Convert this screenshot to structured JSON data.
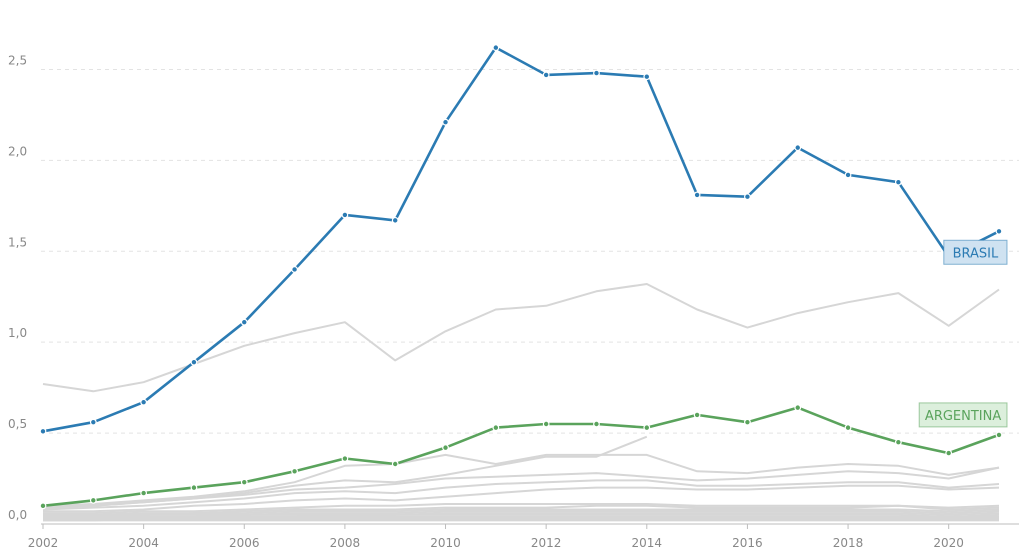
{
  "chart_data": {
    "type": "line",
    "x": [
      2002,
      2003,
      2004,
      2005,
      2006,
      2007,
      2008,
      2009,
      2010,
      2011,
      2012,
      2013,
      2014,
      2015,
      2016,
      2017,
      2018,
      2019,
      2020,
      2021
    ],
    "xticks": [
      "2002",
      "2004",
      "2006",
      "2008",
      "2010",
      "2012",
      "2014",
      "2016",
      "2018",
      "2020"
    ],
    "yticks": [
      "0,0",
      "0,5",
      "1,0",
      "1,5",
      "2,0",
      "2,5"
    ],
    "ylim": [
      0,
      2.75
    ],
    "xlim": [
      2002,
      2021
    ],
    "grid": true,
    "series": [
      {
        "name": "BRASIL",
        "highlight": true,
        "color": "#2b7bb3",
        "label_bg": "#cfe2f1",
        "values": [
          0.51,
          0.56,
          0.67,
          0.89,
          1.11,
          1.4,
          1.7,
          1.67,
          2.21,
          2.62,
          2.47,
          2.48,
          2.46,
          1.81,
          1.8,
          2.07,
          1.92,
          1.88,
          1.47,
          1.61
        ]
      },
      {
        "name": "ARGENTINA",
        "highlight": true,
        "color": "#5aa35c",
        "label_bg": "#dcefdc",
        "values": [
          0.1,
          0.13,
          0.17,
          0.2,
          0.23,
          0.29,
          0.36,
          0.33,
          0.42,
          0.53,
          0.55,
          0.55,
          0.53,
          0.6,
          0.56,
          0.64,
          0.53,
          0.45,
          0.39,
          0.49
        ]
      }
    ],
    "background_series_color": "#d6d6d6",
    "background_series": [
      [
        0.77,
        0.73,
        0.78,
        0.88,
        0.98,
        1.05,
        1.11,
        0.9,
        1.06,
        1.18,
        1.2,
        1.28,
        1.32,
        1.18,
        1.08,
        1.16,
        1.22,
        1.27,
        1.09,
        1.29
      ],
      [
        0.1,
        0.11,
        0.13,
        0.15,
        0.18,
        0.23,
        0.32,
        0.33,
        0.38,
        0.33,
        0.38,
        0.38,
        0.38,
        0.29,
        0.28,
        0.31,
        0.33,
        0.32,
        0.27,
        0.31
      ],
      [
        0.09,
        0.1,
        0.12,
        0.14,
        0.17,
        0.21,
        0.24,
        0.23,
        0.27,
        0.32,
        0.37,
        0.37,
        0.48,
        null,
        null,
        null,
        null,
        null,
        null,
        null
      ],
      [
        0.09,
        0.1,
        0.12,
        0.14,
        0.16,
        0.19,
        0.2,
        0.22,
        0.25,
        0.26,
        0.27,
        0.28,
        0.26,
        0.24,
        0.25,
        0.27,
        0.29,
        0.28,
        0.25,
        0.31
      ],
      [
        0.08,
        0.09,
        0.1,
        0.12,
        0.14,
        0.17,
        0.18,
        0.17,
        0.2,
        0.22,
        0.23,
        0.24,
        0.24,
        0.21,
        0.21,
        0.22,
        0.23,
        0.23,
        0.2,
        0.22
      ],
      [
        0.07,
        0.07,
        0.08,
        0.1,
        0.11,
        0.13,
        0.14,
        0.13,
        0.15,
        0.17,
        0.19,
        0.2,
        0.2,
        0.19,
        0.19,
        0.2,
        0.21,
        0.21,
        0.19,
        0.2
      ],
      [
        0.06,
        0.06,
        0.07,
        0.07,
        0.08,
        0.09,
        0.1,
        0.1,
        0.11,
        0.11,
        0.11,
        0.11,
        0.11,
        0.1,
        0.1,
        0.1,
        0.1,
        0.1,
        0.09,
        0.1
      ],
      [
        0.05,
        0.05,
        0.06,
        0.06,
        0.07,
        0.08,
        0.08,
        0.08,
        0.09,
        0.09,
        0.09,
        0.1,
        0.1,
        0.09,
        0.09,
        0.09,
        0.09,
        0.1,
        0.08,
        0.09
      ],
      [
        0.05,
        0.05,
        0.05,
        0.06,
        0.06,
        0.07,
        0.07,
        0.07,
        0.08,
        0.08,
        0.08,
        0.08,
        0.08,
        0.08,
        0.08,
        0.08,
        0.08,
        0.08,
        0.07,
        0.08
      ],
      [
        0.04,
        0.04,
        0.05,
        0.05,
        0.05,
        0.06,
        0.06,
        0.06,
        0.07,
        0.07,
        0.07,
        0.07,
        0.07,
        0.07,
        0.07,
        0.07,
        0.07,
        0.07,
        0.06,
        0.07
      ],
      [
        0.04,
        0.04,
        0.04,
        0.04,
        0.05,
        0.05,
        0.05,
        0.05,
        0.06,
        0.06,
        0.06,
        0.06,
        0.06,
        0.06,
        0.06,
        0.06,
        0.06,
        0.06,
        0.05,
        0.06
      ],
      [
        0.03,
        0.03,
        0.04,
        0.04,
        0.04,
        0.04,
        0.05,
        0.05,
        0.05,
        0.05,
        0.05,
        0.05,
        0.05,
        0.05,
        0.05,
        0.05,
        0.05,
        0.05,
        0.04,
        0.05
      ],
      [
        0.03,
        0.03,
        0.03,
        0.03,
        0.04,
        0.04,
        0.04,
        0.04,
        0.04,
        0.04,
        0.04,
        0.04,
        0.04,
        0.04,
        0.04,
        0.04,
        0.04,
        0.04,
        0.04,
        0.04
      ],
      [
        0.02,
        0.02,
        0.03,
        0.03,
        0.03,
        0.03,
        0.03,
        0.03,
        0.03,
        0.03,
        0.03,
        0.03,
        0.03,
        0.03,
        0.03,
        0.03,
        0.03,
        0.03,
        0.03,
        0.03
      ],
      [
        0.02,
        0.02,
        0.02,
        0.02,
        0.02,
        0.02,
        0.02,
        0.02,
        0.02,
        0.02,
        0.02,
        0.02,
        0.02,
        0.02,
        0.02,
        0.02,
        0.02,
        0.02,
        0.02,
        0.02
      ]
    ]
  }
}
